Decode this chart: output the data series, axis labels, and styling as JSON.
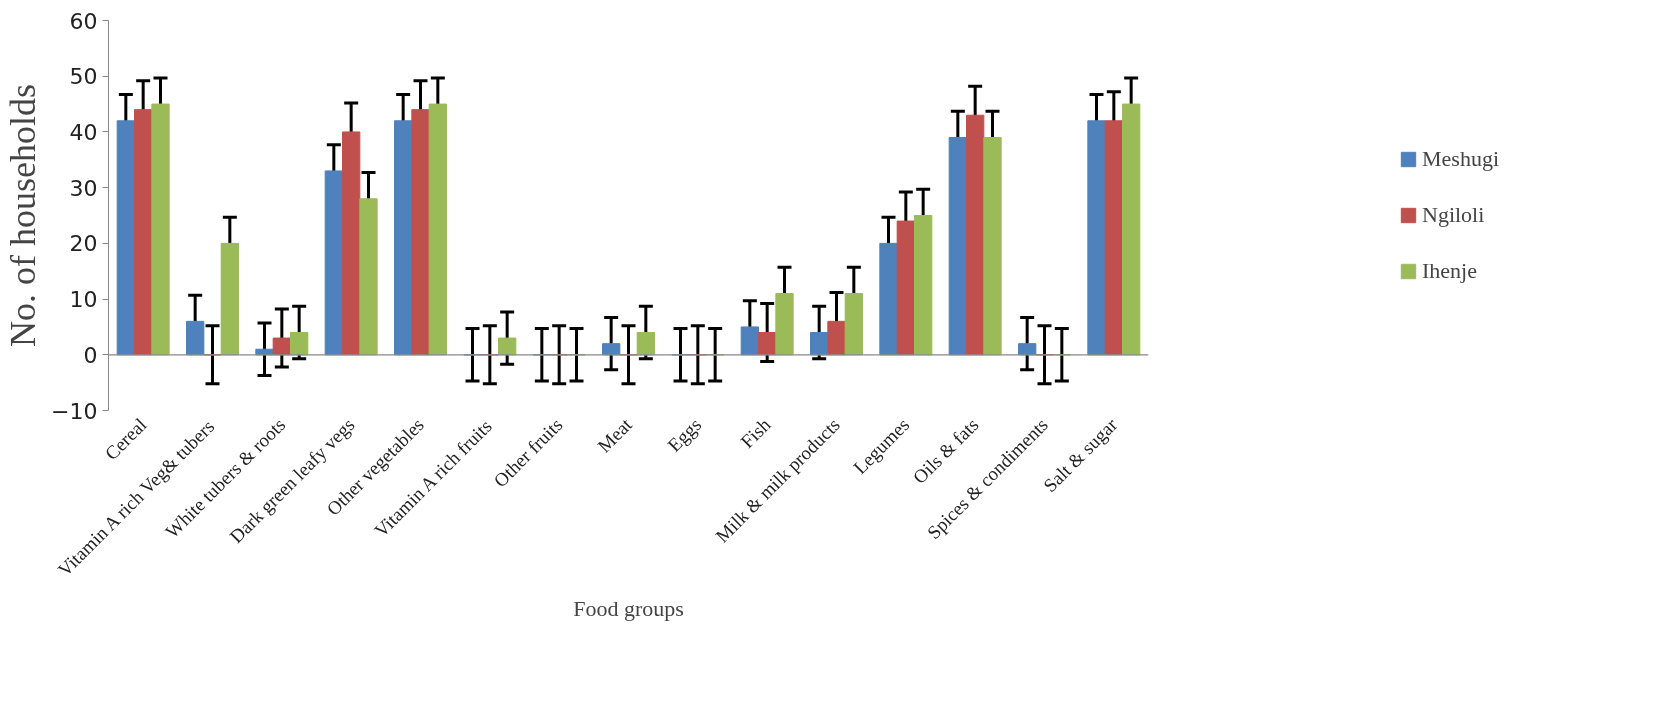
{
  "chart_data": {
    "type": "bar",
    "xlabel": "Food groups",
    "ylabel": "No. of households",
    "categories": [
      "Cereal",
      "Vitamin A rich Veg& tubers",
      "White tubers & roots",
      "Dark green leafy vegs",
      "Other vegetables",
      "Vitamin A rich fruits",
      "Other fruits",
      "Meat",
      "Eggs",
      "Fish",
      "Milk & milk products",
      "Legumes",
      "Oils & fats",
      "Spices & condiments",
      "Salt & sugar"
    ],
    "series": [
      {
        "name": "Meshugi",
        "color": "#4f81bd",
        "values": [
          42,
          6,
          1,
          33,
          42,
          0,
          0,
          2,
          0,
          5,
          4,
          20,
          39,
          2,
          42
        ],
        "errors": [
          4.7,
          4.7,
          4.7,
          4.7,
          4.7,
          4.7,
          4.7,
          4.7,
          4.7,
          4.7,
          4.7,
          4.7,
          4.7,
          4.7,
          4.7
        ]
      },
      {
        "name": "Ngiloli",
        "color": "#c0504d",
        "values": [
          44,
          0,
          3,
          40,
          44,
          0,
          0,
          0,
          0,
          4,
          6,
          24,
          43,
          0,
          42
        ],
        "errors": [
          5.2,
          5.2,
          5.2,
          5.2,
          5.2,
          5.2,
          5.2,
          5.2,
          5.2,
          5.2,
          5.2,
          5.2,
          5.2,
          5.2,
          5.2
        ]
      },
      {
        "name": "Ihenje",
        "color": "#9bbb59",
        "values": [
          45,
          20,
          4,
          28,
          45,
          3,
          0,
          4,
          0,
          11,
          11,
          25,
          39,
          0,
          45
        ],
        "errors": [
          4.7,
          4.7,
          4.7,
          4.7,
          4.7,
          4.7,
          4.7,
          4.7,
          4.7,
          4.7,
          4.7,
          4.7,
          4.7,
          4.7,
          4.7
        ]
      }
    ],
    "ylim": [
      -10,
      60
    ],
    "yticks": [
      -10,
      0,
      10,
      20,
      30,
      40,
      50,
      60
    ],
    "grid": false,
    "legend": "right",
    "ref_lines": [
      {
        "axis": "y",
        "value": 0,
        "color": "#888888"
      }
    ]
  }
}
